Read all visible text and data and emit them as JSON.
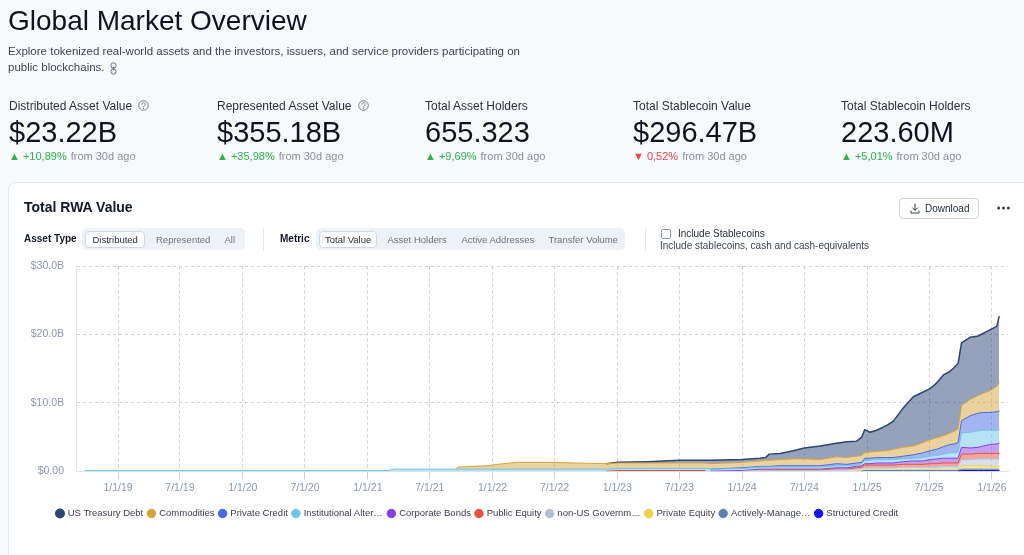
{
  "chart_data": [
    {
      "type": "other",
      "title": "Global Market Overview",
      "subtitle": "Explore tokenized real-world assets and the investors, issuers, and service providers participating on public blockchains.",
      "categories": [
        "Distributed Asset Value",
        "Represented Asset Value",
        "Total Asset Holders",
        "Total Stablecoin Value",
        "Total Stablecoin Holders"
      ],
      "value_labels": [
        "$23.22B",
        "$355.18B",
        "655.323",
        "$296.47B",
        "223.60M"
      ],
      "colors": [
        "#2fb24c",
        "#2fb24c",
        "#2fb24c",
        "#e5484d",
        "#2fb24c"
      ],
      "annotations": [
        "▲ +10,89%",
        "from 30d ago",
        "▲ +35,98%",
        "from 30d ago",
        "▲ +9,69%",
        "from 30d ago",
        "▼ 0,52%",
        "from 30d ago",
        "▲ +5,01%",
        "from 30d ago"
      ]
    },
    {
      "type": "area",
      "stacked": true,
      "title": "Total RWA Value",
      "annotations": [
        "Asset Type",
        "Distributed",
        "Represented",
        "All",
        "Metric",
        "Total Value",
        "Asset Holders",
        "Active Addresses",
        "Transfer Volume",
        "Include Stablecoins",
        "Include stablecoins, cash and cash-equivalents",
        "Download"
      ],
      "x": [
        "2018-09-26",
        "2019-07-01",
        "2020-07-01",
        "2021-03-01",
        "2021-03-20",
        "2021-09-15",
        "2021-09-20",
        "2021-12-15",
        "2022-01-15",
        "2022-03-15",
        "2022-06-15",
        "2022-09-01",
        "2022-12-01",
        "2023-01-01",
        "2023-04-01",
        "2023-07-01",
        "2023-09-15",
        "2023-10-01",
        "2024-01-01",
        "2024-02-22",
        "2024-03-10",
        "2024-03-20",
        "2024-04-21",
        "2024-05-30",
        "2024-07-01",
        "2024-08-16",
        "2024-10-04",
        "2024-11-02",
        "2024-12-01",
        "2024-12-16",
        "2024-12-25",
        "2025-01-09",
        "2025-01-29",
        "2025-02-27",
        "2025-03-18",
        "2025-04-17",
        "2025-05-16",
        "2025-06-14",
        "2025-07-04",
        "2025-07-23",
        "2025-08-12",
        "2025-08-31",
        "2025-09-15",
        "2025-09-24",
        "2025-10-04",
        "2025-10-29",
        "2025-11-22",
        "2025-12-07",
        "2025-12-26",
        "2026-01-15",
        "2026-01-22"
      ],
      "series": [
        {
          "name": "Structured Credit",
          "color": "#1010ef",
          "values": [
            null,
            null,
            null,
            null,
            null,
            null,
            null,
            null,
            null,
            null,
            null,
            null,
            null,
            null,
            null,
            null,
            null,
            null,
            null,
            null,
            null,
            null,
            null,
            null,
            null,
            null,
            null,
            null,
            null,
            null,
            null,
            null,
            null,
            null,
            null,
            null,
            null,
            null,
            null,
            null,
            null,
            null,
            null,
            0,
            0.1,
            0.1,
            0.1,
            0.1,
            0.1,
            0.1,
            0.1
          ]
        },
        {
          "name": "Actively-Manage…",
          "color": "#5b82b5",
          "values": [
            null,
            null,
            null,
            null,
            null,
            null,
            null,
            null,
            null,
            null,
            null,
            null,
            null,
            null,
            null,
            null,
            null,
            null,
            null,
            null,
            null,
            null,
            null,
            null,
            null,
            null,
            null,
            null,
            null,
            0,
            0.1,
            0.1,
            0.1,
            0.1,
            0.1,
            0.1,
            0.1,
            0.1,
            0.1,
            0.1,
            0.1,
            0.1,
            0.1,
            0.1,
            0.2,
            0.2,
            0.2,
            0.2,
            0.2,
            0.2,
            0.2
          ]
        },
        {
          "name": "Private Equity",
          "color": "#f3cf4a",
          "values": [
            null,
            null,
            null,
            null,
            null,
            null,
            null,
            null,
            null,
            null,
            null,
            null,
            null,
            null,
            null,
            null,
            null,
            null,
            null,
            null,
            null,
            null,
            null,
            null,
            null,
            null,
            null,
            null,
            0,
            0.1,
            0.1,
            0.1,
            0.1,
            0.1,
            0.1,
            0.1,
            0.1,
            0.1,
            0.1,
            0.1,
            0.1,
            0.1,
            0.1,
            0.1,
            0.5,
            0.5,
            0.5,
            0.5,
            0.4,
            0.4,
            0.4
          ]
        },
        {
          "name": "non-US Governm…",
          "color": "#b4c0d6",
          "values": [
            null,
            null,
            null,
            null,
            null,
            null,
            null,
            null,
            null,
            null,
            null,
            null,
            null,
            null,
            null,
            null,
            null,
            null,
            0,
            0.1,
            0.1,
            0.1,
            0.1,
            0.1,
            0.1,
            0.1,
            0.2,
            0.2,
            0.3,
            0.3,
            0.3,
            0.3,
            0.3,
            0.3,
            0.3,
            0.4,
            0.4,
            0.4,
            0.4,
            0.4,
            0.5,
            0.5,
            0.5,
            0.5,
            0.9,
            0.9,
            1.0,
            1.0,
            1.1,
            1.1,
            1.1
          ]
        },
        {
          "name": "Public Equity",
          "color": "#e9513a",
          "values": [
            null,
            null,
            null,
            null,
            null,
            null,
            null,
            null,
            null,
            null,
            null,
            null,
            0,
            0.1,
            0.1,
            0.1,
            0.1,
            null,
            null,
            0.1,
            0.1,
            0.1,
            0.1,
            0.1,
            0.1,
            0.1,
            0.1,
            0.1,
            0.2,
            0.2,
            0.4,
            0.4,
            0.4,
            0.4,
            0.4,
            0.4,
            0.4,
            0.4,
            0.5,
            0.5,
            0.5,
            0.5,
            0.5,
            0.5,
            0.8,
            0.8,
            0.8,
            0.8,
            0.8,
            0.8,
            0.8
          ]
        },
        {
          "name": "Corporate Bonds",
          "color": "#8a3ee8",
          "values": [
            null,
            null,
            null,
            null,
            null,
            null,
            null,
            null,
            null,
            null,
            null,
            null,
            null,
            null,
            null,
            null,
            null,
            0,
            0.1,
            0.1,
            0.1,
            0.1,
            0.1,
            0.1,
            0.1,
            0.1,
            0.2,
            0.2,
            0.2,
            0.2,
            0.2,
            0.2,
            0.3,
            0.3,
            0.3,
            0.4,
            0.5,
            0.5,
            0.6,
            0.7,
            0.7,
            0.7,
            0.7,
            0.7,
            1.0,
            0.9,
            0.9,
            1.1,
            1.3,
            1.4,
            1.5
          ]
        },
        {
          "name": "Institutional Alter…",
          "color": "#6bc6ea",
          "values": [
            0.1,
            0.1,
            0.1,
            0.1,
            0.3,
            0.3,
            0.3,
            0.3,
            0.3,
            0.3,
            0.3,
            0.3,
            0.3,
            0.3,
            0.3,
            0.3,
            0.3,
            0.3,
            0.3,
            0.3,
            0.3,
            0.3,
            0.3,
            0.3,
            0.3,
            0.3,
            0.3,
            0.3,
            0.2,
            0.3,
            0.5,
            0.5,
            0.5,
            0.5,
            0.5,
            0.4,
            0.4,
            0.5,
            0.5,
            0.5,
            0.6,
            0.8,
            0.8,
            0.9,
            2.1,
            2.3,
            2.4,
            2.3,
            2.1,
            2.0,
            2.0
          ]
        },
        {
          "name": "Private Credit",
          "color": "#4869e6",
          "values": [
            null,
            null,
            null,
            null,
            null,
            null,
            null,
            null,
            null,
            null,
            null,
            null,
            null,
            null,
            null,
            null,
            null,
            0,
            0.1,
            0.1,
            0.1,
            0.1,
            0.2,
            0.2,
            0.2,
            0.2,
            0.3,
            0.2,
            0.3,
            0.2,
            0.3,
            0.3,
            0.3,
            0.3,
            0.3,
            0.4,
            0.5,
            0.7,
            0.8,
            0.9,
            1.1,
            1.2,
            1.3,
            1.4,
            1.8,
            2.4,
            2.6,
            2.6,
            2.6,
            2.7,
            2.7
          ]
        },
        {
          "name": "Commodities",
          "color": "#d6a43e",
          "values": [
            null,
            null,
            null,
            null,
            null,
            0,
            0.3,
            0.5,
            0.7,
            1.0,
            1.0,
            0.9,
            0.8,
            0.8,
            0.8,
            0.8,
            0.8,
            0.8,
            0.8,
            0.8,
            0.9,
            0.9,
            0.9,
            1.0,
            1.0,
            0.9,
            1.0,
            1.0,
            1.0,
            1.0,
            0.8,
            0.9,
            0.9,
            1.0,
            1.2,
            1.3,
            1.3,
            1.5,
            1.6,
            1.7,
            1.6,
            1.7,
            1.9,
            2.0,
            2.2,
            2.4,
            2.6,
            2.8,
            3.2,
            3.7,
            4.2
          ]
        },
        {
          "name": "US Treasury Debt",
          "color": "#2b4675",
          "values": [
            null,
            null,
            null,
            null,
            null,
            null,
            null,
            null,
            null,
            null,
            null,
            null,
            0,
            0.1,
            0.2,
            0.4,
            0.4,
            0.5,
            0.4,
            0.4,
            0.4,
            0.9,
            0.9,
            1.2,
            1.6,
            2.0,
            2.0,
            2.3,
            2.2,
            2.7,
            3.4,
            2.9,
            3.1,
            3.7,
            4.1,
            5.8,
            7.2,
            7.4,
            7.5,
            8.0,
            8.9,
            9.0,
            9.4,
            9.6,
            9.2,
            9.1,
            8.7,
            8.8,
            8.9,
            8.8,
            9.6
          ]
        }
      ],
      "xlim": [
        "2018-08-31",
        "2026-02-17"
      ],
      "xticks": [
        {
          "value": "2019-01-01",
          "label": "1/1/19"
        },
        {
          "value": "2019-07-01",
          "label": "7/1/19"
        },
        {
          "value": "2020-01-01",
          "label": "1/1/20"
        },
        {
          "value": "2020-07-01",
          "label": "7/1/20"
        },
        {
          "value": "2021-01-01",
          "label": "1/1/21"
        },
        {
          "value": "2021-07-01",
          "label": "7/1/21"
        },
        {
          "value": "2022-01-01",
          "label": "1/1/22"
        },
        {
          "value": "2022-07-01",
          "label": "7/1/22"
        },
        {
          "value": "2023-01-01",
          "label": "1/1/23"
        },
        {
          "value": "2023-07-01",
          "label": "7/1/23"
        },
        {
          "value": "2024-01-01",
          "label": "1/1/24"
        },
        {
          "value": "2024-07-01",
          "label": "7/1/24"
        },
        {
          "value": "2025-01-01",
          "label": "1/1/25"
        },
        {
          "value": "2025-07-01",
          "label": "7/1/25"
        },
        {
          "value": "2026-01-01",
          "label": "1/1/26"
        }
      ],
      "ylim": [
        0,
        30
      ],
      "yticks": [
        {
          "value": 0,
          "label": "$0.00"
        },
        {
          "value": 10,
          "label": "$10.0B"
        },
        {
          "value": 20,
          "label": "$20.0B"
        },
        {
          "value": 30,
          "label": "$30.0B"
        }
      ],
      "grid": true,
      "legend": "bottom left",
      "marker": "none",
      "line_style": "solid"
    }
  ]
}
